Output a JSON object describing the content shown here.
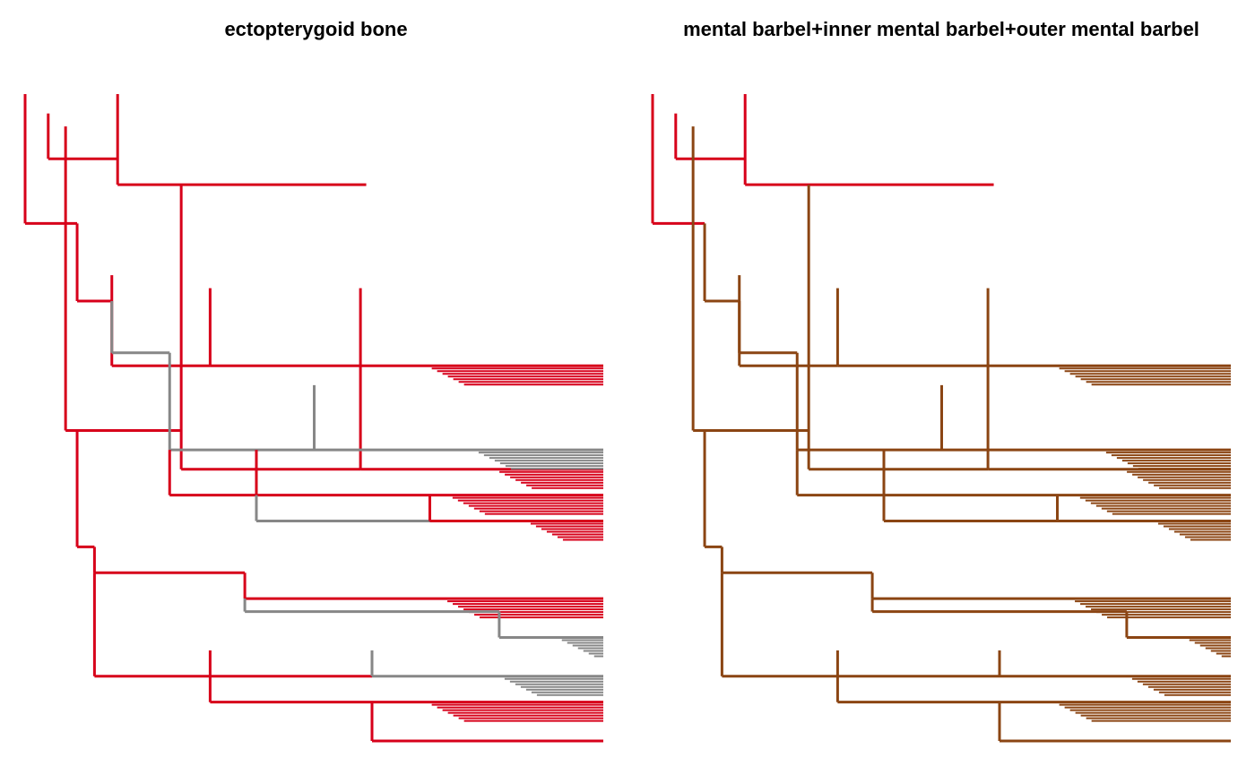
{
  "panels": [
    {
      "title": "ectopterygoid bone",
      "palette": {
        "base": "#d7001a",
        "alt": "#878787"
      },
      "segments": [
        [
          "base",
          0.0,
          0.0,
          0.09,
          0.2
        ],
        [
          "base",
          0.04,
          0.03,
          0.16,
          0.1
        ],
        [
          "base",
          0.16,
          0.0,
          0.59,
          0.14
        ],
        [
          "base",
          0.07,
          0.05,
          0.27,
          0.52
        ],
        [
          "base",
          0.27,
          0.14,
          0.58,
          0.58
        ],
        [
          "base",
          0.58,
          0.3,
          1.0,
          0.58
        ],
        [
          "base",
          0.09,
          0.2,
          0.15,
          0.32
        ],
        [
          "base",
          0.15,
          0.28,
          0.32,
          0.42
        ],
        [
          "base",
          0.32,
          0.3,
          1.0,
          0.42
        ],
        [
          "alt",
          0.15,
          0.32,
          0.25,
          0.4
        ],
        [
          "alt",
          0.25,
          0.4,
          0.5,
          0.55
        ],
        [
          "alt",
          0.5,
          0.45,
          1.0,
          0.55
        ],
        [
          "base",
          0.25,
          0.55,
          0.4,
          0.62
        ],
        [
          "base",
          0.4,
          0.55,
          1.0,
          0.62
        ],
        [
          "alt",
          0.4,
          0.62,
          0.7,
          0.66
        ],
        [
          "base",
          0.7,
          0.62,
          1.0,
          0.66
        ],
        [
          "base",
          0.09,
          0.52,
          0.12,
          0.7
        ],
        [
          "base",
          0.12,
          0.7,
          0.38,
          0.74
        ],
        [
          "base",
          0.38,
          0.74,
          1.0,
          0.78
        ],
        [
          "alt",
          0.38,
          0.78,
          0.82,
          0.8
        ],
        [
          "alt",
          0.82,
          0.8,
          1.0,
          0.84
        ],
        [
          "base",
          0.12,
          0.74,
          0.32,
          0.9
        ],
        [
          "base",
          0.32,
          0.86,
          0.6,
          0.9
        ],
        [
          "alt",
          0.6,
          0.86,
          1.0,
          0.9
        ],
        [
          "base",
          0.32,
          0.9,
          1.0,
          0.94
        ],
        [
          "base",
          0.6,
          0.94,
          1.0,
          1.0
        ]
      ]
    },
    {
      "title": "mental barbel+inner mental barbel+outer mental barbel",
      "palette": {
        "base": "#d7001a",
        "alt": "#8b4513"
      },
      "segments": [
        [
          "base",
          0.0,
          0.0,
          0.09,
          0.2
        ],
        [
          "base",
          0.04,
          0.03,
          0.16,
          0.1
        ],
        [
          "base",
          0.16,
          0.0,
          0.59,
          0.14
        ],
        [
          "alt",
          0.07,
          0.05,
          0.27,
          0.52
        ],
        [
          "alt",
          0.27,
          0.14,
          0.58,
          0.58
        ],
        [
          "alt",
          0.58,
          0.3,
          1.0,
          0.58
        ],
        [
          "alt",
          0.09,
          0.2,
          0.15,
          0.32
        ],
        [
          "alt",
          0.15,
          0.28,
          0.32,
          0.42
        ],
        [
          "alt",
          0.32,
          0.3,
          1.0,
          0.42
        ],
        [
          "alt",
          0.15,
          0.32,
          0.25,
          0.4
        ],
        [
          "alt",
          0.25,
          0.4,
          0.5,
          0.55
        ],
        [
          "alt",
          0.5,
          0.45,
          1.0,
          0.55
        ],
        [
          "alt",
          0.25,
          0.55,
          0.4,
          0.62
        ],
        [
          "alt",
          0.4,
          0.55,
          1.0,
          0.62
        ],
        [
          "alt",
          0.4,
          0.62,
          0.7,
          0.66
        ],
        [
          "alt",
          0.7,
          0.62,
          1.0,
          0.66
        ],
        [
          "alt",
          0.09,
          0.52,
          0.12,
          0.7
        ],
        [
          "alt",
          0.12,
          0.7,
          0.38,
          0.74
        ],
        [
          "alt",
          0.38,
          0.74,
          1.0,
          0.78
        ],
        [
          "alt",
          0.38,
          0.78,
          0.82,
          0.8
        ],
        [
          "alt",
          0.82,
          0.8,
          1.0,
          0.84
        ],
        [
          "alt",
          0.12,
          0.74,
          0.32,
          0.9
        ],
        [
          "alt",
          0.32,
          0.86,
          0.6,
          0.9
        ],
        [
          "alt",
          0.6,
          0.86,
          1.0,
          0.9
        ],
        [
          "alt",
          0.32,
          0.9,
          1.0,
          0.94
        ],
        [
          "alt",
          0.6,
          0.94,
          1.0,
          1.0
        ]
      ]
    }
  ]
}
